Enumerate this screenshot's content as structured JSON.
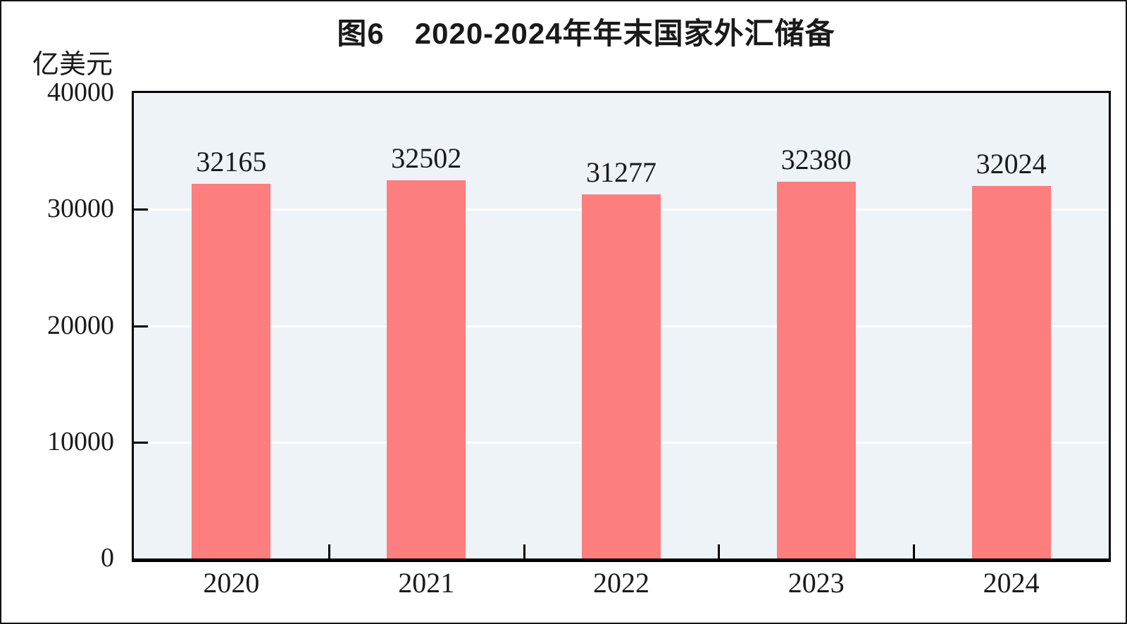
{
  "chart_data": {
    "type": "bar",
    "title": "图6　2020-2024年年末国家外汇储备",
    "unit_label": "亿美元",
    "categories": [
      "2020",
      "2021",
      "2022",
      "2023",
      "2024"
    ],
    "values": [
      32165,
      32502,
      31277,
      32380,
      32024
    ],
    "series_name": "年末国家外汇储备",
    "ylabel": "亿美元",
    "xlabel": "",
    "ylim": [
      0,
      40000
    ],
    "yticks": [
      0,
      10000,
      20000,
      30000,
      40000
    ],
    "grid": "horizontal",
    "gridline_values": [
      10000,
      20000,
      30000
    ],
    "legend": "none",
    "data_labels_shown": true,
    "colors": {
      "bar": "#FD7E7E",
      "plot_background": "#EDF3F7",
      "gridline": "#FFFFFF",
      "axis_border": "#000000",
      "text": "#1A1A1A",
      "page_background": "#FFFFFF"
    }
  }
}
